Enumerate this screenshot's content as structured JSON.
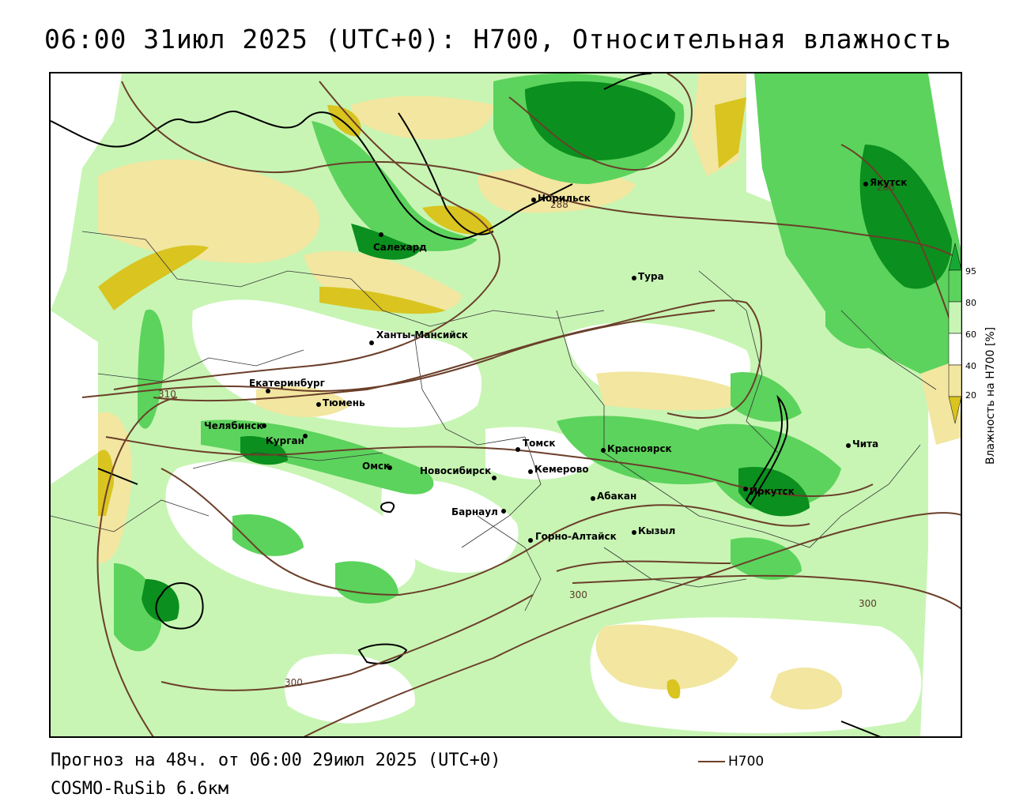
{
  "header": {
    "title": "06:00 31июл 2025 (UTC+0): H700, Относительная влажность"
  },
  "footer": {
    "forecast": "Прогноз на 48ч. от 06:00 29июл 2025 (UTC+0)",
    "model": "COSMO-RuSib 6.6км",
    "contour_legend_label": "H700"
  },
  "colorbar": {
    "title": "Влажность на H700 [%]",
    "ticks": [
      "95",
      "80",
      "60",
      "40",
      "20"
    ],
    "colors": {
      "very_dry": "#d9c420",
      "dry": "#f2e6a0",
      "neutral": "#ffffff",
      "moist": "#c8f5b4",
      "wet": "#5cd35c",
      "very_wet": "#17a834",
      "saturated": "#0b8f1e"
    }
  },
  "contours": {
    "color": "#6b3f2a",
    "labels": [
      "288",
      "288",
      "310",
      "300",
      "300",
      "300"
    ]
  },
  "cities": [
    {
      "name": "Норильск"
    },
    {
      "name": "Якутск"
    },
    {
      "name": "Салехард"
    },
    {
      "name": "Тура"
    },
    {
      "name": "Ханты-Мансийск"
    },
    {
      "name": "Екатеринбург"
    },
    {
      "name": "Тюмень"
    },
    {
      "name": "Челябинск"
    },
    {
      "name": "Курган"
    },
    {
      "name": "Омск"
    },
    {
      "name": "Новосибирск"
    },
    {
      "name": "Томск"
    },
    {
      "name": "Кемерово"
    },
    {
      "name": "Красноярск"
    },
    {
      "name": "Абакан"
    },
    {
      "name": "Барнаул"
    },
    {
      "name": "Иркутск"
    },
    {
      "name": "Чита"
    },
    {
      "name": "Кызыл"
    },
    {
      "name": "Горно-Алтайск"
    }
  ]
}
